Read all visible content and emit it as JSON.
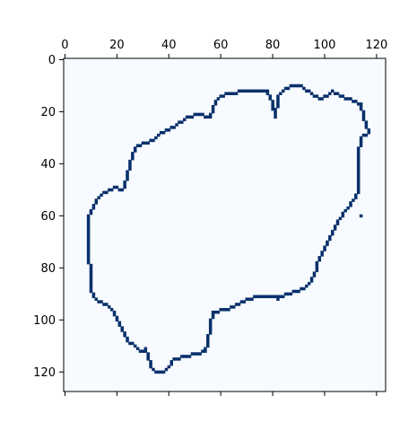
{
  "chart_data": {
    "type": "heatmap",
    "title": "",
    "xlabel": "",
    "ylabel": "",
    "colormap": "Blues",
    "background_color": "#f7fbff",
    "mask_color": "#08306b",
    "grid": false,
    "xlim": [
      0,
      124
    ],
    "ylim": [
      0,
      128
    ],
    "x_ticks_position": "top",
    "y_axis_inverted": true,
    "x_ticks": [
      "0",
      "20",
      "40",
      "60",
      "80",
      "100",
      "120"
    ],
    "y_ticks": [
      "0",
      "20",
      "40",
      "60",
      "80",
      "100",
      "120"
    ],
    "outline_path": [
      [
        62,
        13
      ],
      [
        70,
        12
      ],
      [
        78,
        12
      ],
      [
        80,
        17
      ],
      [
        81,
        22
      ],
      [
        82,
        14
      ],
      [
        84,
        12
      ],
      [
        87,
        10
      ],
      [
        91,
        10
      ],
      [
        95,
        13
      ],
      [
        99,
        15
      ],
      [
        103,
        12
      ],
      [
        106,
        14
      ],
      [
        110,
        15
      ],
      [
        114,
        17
      ],
      [
        115,
        22
      ],
      [
        117,
        28
      ],
      [
        114,
        30
      ],
      [
        113,
        36
      ],
      [
        113,
        42
      ],
      [
        113,
        50
      ],
      [
        111,
        54
      ],
      [
        108,
        58
      ],
      [
        105,
        62
      ],
      [
        103,
        66
      ],
      [
        101,
        70
      ],
      [
        99,
        74
      ],
      [
        97,
        79
      ],
      [
        96,
        83
      ],
      [
        94,
        86
      ],
      [
        92,
        88
      ],
      [
        89,
        89
      ],
      [
        86,
        90
      ],
      [
        82,
        91
      ],
      [
        78,
        91
      ],
      [
        74,
        91
      ],
      [
        70,
        92
      ],
      [
        66,
        94
      ],
      [
        62,
        96
      ],
      [
        57,
        97
      ],
      [
        56,
        102
      ],
      [
        55,
        108
      ],
      [
        54,
        112
      ],
      [
        50,
        113
      ],
      [
        46,
        114
      ],
      [
        42,
        115
      ],
      [
        40,
        118
      ],
      [
        38,
        120
      ],
      [
        35,
        120
      ],
      [
        33,
        118
      ],
      [
        32,
        114
      ],
      [
        31,
        111
      ],
      [
        29,
        112
      ],
      [
        27,
        110
      ],
      [
        24,
        108
      ],
      [
        22,
        104
      ],
      [
        20,
        99
      ],
      [
        18,
        96
      ],
      [
        16,
        94
      ],
      [
        12,
        92
      ],
      [
        10,
        89
      ],
      [
        10,
        83
      ],
      [
        9,
        75
      ],
      [
        9,
        66
      ],
      [
        9,
        60
      ],
      [
        11,
        56
      ],
      [
        13,
        53
      ],
      [
        15,
        51
      ],
      [
        20,
        49
      ],
      [
        22,
        50
      ],
      [
        23,
        48
      ],
      [
        24,
        44
      ],
      [
        25,
        40
      ],
      [
        26,
        36
      ],
      [
        28,
        33
      ],
      [
        31,
        32
      ],
      [
        33,
        31
      ],
      [
        35,
        30
      ],
      [
        37,
        28
      ],
      [
        40,
        27
      ],
      [
        43,
        25
      ],
      [
        47,
        22
      ],
      [
        51,
        21
      ],
      [
        56,
        22
      ],
      [
        57,
        18
      ],
      [
        59,
        15
      ],
      [
        62,
        13
      ]
    ],
    "extra_points": [
      [
        114,
        60
      ],
      [
        82,
        92
      ]
    ]
  }
}
